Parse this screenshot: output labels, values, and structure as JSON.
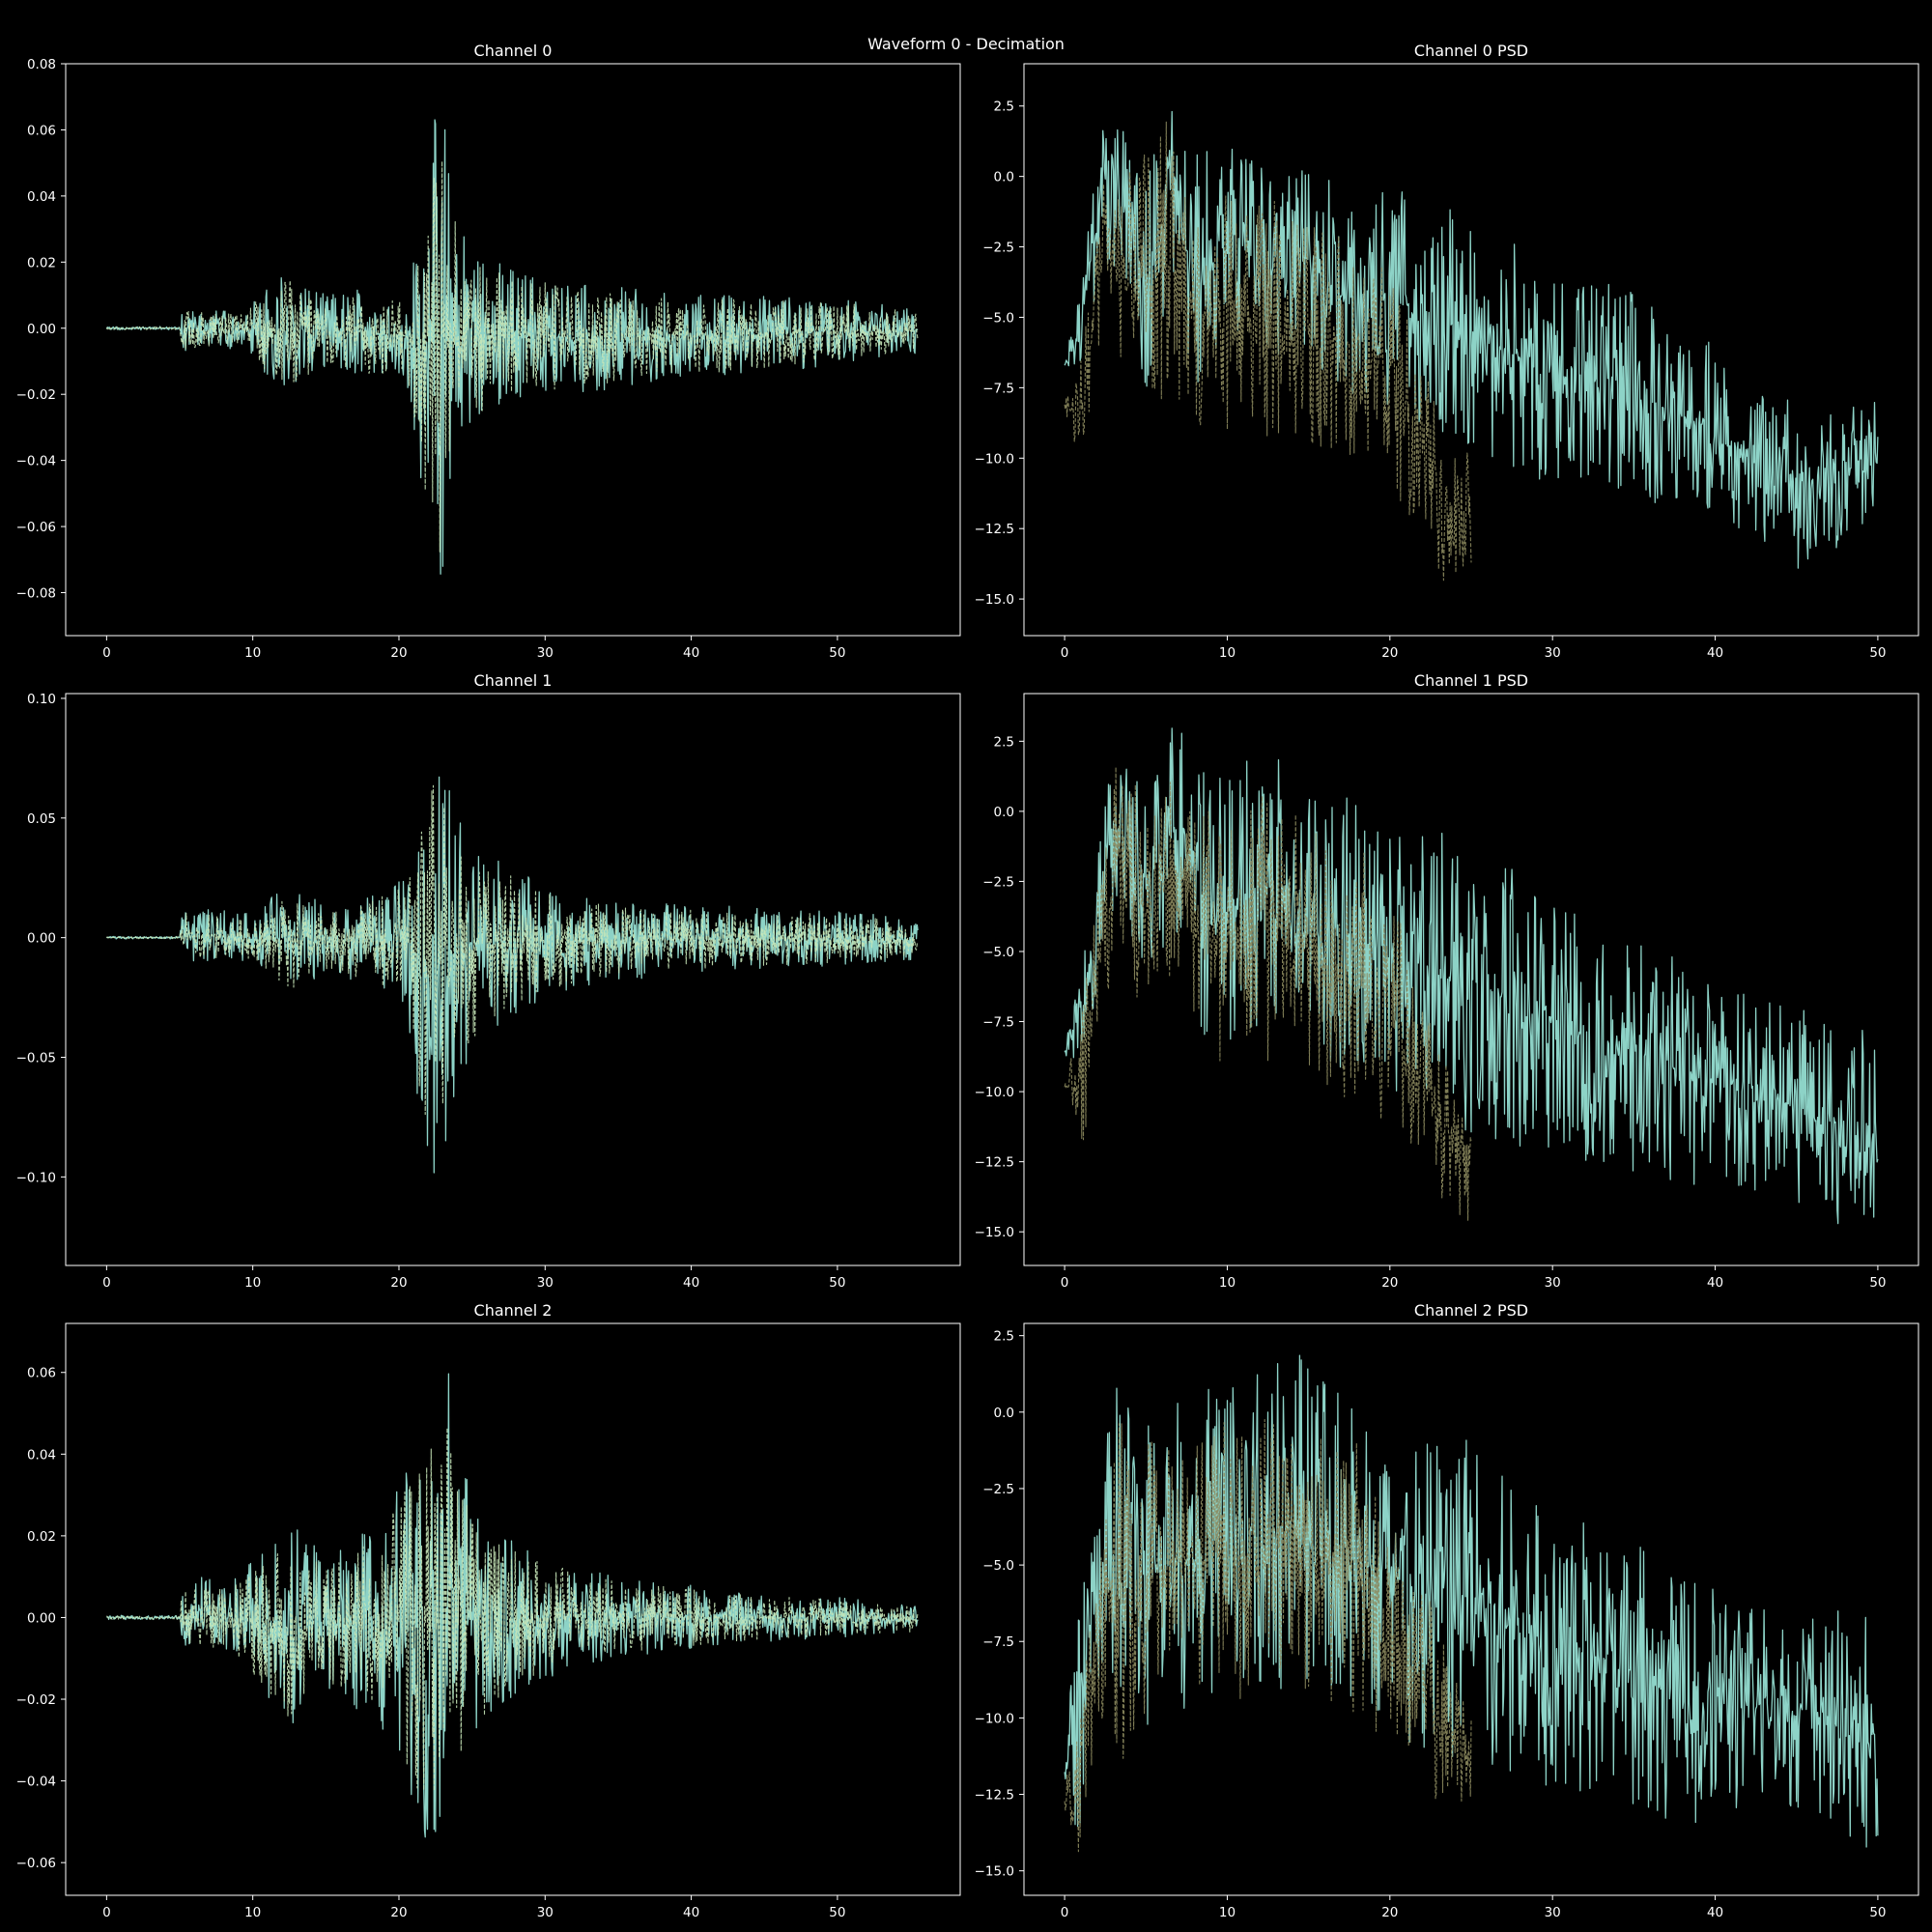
{
  "figure": {
    "title": "Waveform 0 - Decimation",
    "background": "#000000"
  },
  "colors": {
    "original": "#8dd3c7",
    "decimated": "#c7e6b8",
    "psd_decimated": "#8c8a5e",
    "axes": "#ffffff"
  },
  "chart_data": [
    {
      "type": "line",
      "title": "Channel 0",
      "xlabel": "",
      "ylabel": "",
      "xlim": [
        -2.8,
        58.4
      ],
      "ylim": [
        -0.093,
        0.08
      ],
      "xticks": [
        0,
        10,
        20,
        30,
        40,
        50
      ],
      "yticks": [
        -0.08,
        -0.06,
        -0.04,
        -0.02,
        0.0,
        0.02,
        0.04,
        0.06,
        0.08
      ],
      "ytick_labels": [
        "−0.08",
        "−0.06",
        "−0.04",
        "−0.02",
        "0.00",
        "0.02",
        "0.04",
        "0.06",
        "0.08"
      ],
      "series": [
        {
          "style": "solid",
          "color": "#8dd3c7",
          "envelope": {
            "x": [
              0,
              5.0,
              5.2,
              9.5,
              10.5,
              12.5,
              15,
              18,
              20.5,
              21.5,
              22.5,
              23.0,
              23.5,
              25,
              28,
              32,
              38,
              45,
              50,
              55.5
            ],
            "upper": [
              0.0005,
              0.0005,
              0.006,
              0.005,
              0.012,
              0.018,
              0.01,
              0.013,
              0.01,
              0.035,
              0.065,
              0.072,
              0.045,
              0.025,
              0.018,
              0.014,
              0.011,
              0.01,
              0.009,
              0.006
            ],
            "lower": [
              -0.0005,
              -0.0005,
              -0.007,
              -0.006,
              -0.013,
              -0.02,
              -0.012,
              -0.016,
              -0.015,
              -0.05,
              -0.072,
              -0.085,
              -0.05,
              -0.03,
              -0.022,
              -0.02,
              -0.016,
              -0.014,
              -0.011,
              -0.008
            ]
          }
        },
        {
          "style": "dashed",
          "color": "#c7e6b8",
          "scale": 0.88
        }
      ]
    },
    {
      "type": "line",
      "title": "Channel 0 PSD",
      "xlabel": "",
      "ylabel": "",
      "xlim": [
        -2.5,
        52.5
      ],
      "ylim": [
        -16.3,
        4.0
      ],
      "xticks": [
        0,
        10,
        20,
        30,
        40,
        50
      ],
      "yticks": [
        -15.0,
        -12.5,
        -10.0,
        -7.5,
        -5.0,
        -2.5,
        0.0,
        2.5
      ],
      "ytick_labels": [
        "−15.0",
        "−12.5",
        "−10.0",
        "−7.5",
        "−5.0",
        "−2.5",
        "0.0",
        "2.5"
      ],
      "series": [
        {
          "style": "solid",
          "color": "#8dd3c7",
          "envelope": {
            "x": [
              0,
              1,
              2.5,
              4,
              5,
              6.5,
              8,
              10,
              12,
              14,
              17,
              20,
              23,
              26,
              30,
              35,
              40,
              42,
              45,
              50
            ],
            "upper": [
              -6.5,
              -4.0,
              3.0,
              1.5,
              0.0,
              3.0,
              0.8,
              1.5,
              0.5,
              1.2,
              -0.5,
              -0.3,
              -0.8,
              -1.8,
              -3.0,
              -4.0,
              -6.0,
              -7.5,
              -7.5,
              -8.0
            ],
            "lower": [
              -7.0,
              -7.0,
              -3.0,
              -4.0,
              -8.5,
              -4.0,
              -8.5,
              -5.0,
              -7.0,
              -6.0,
              -8.0,
              -8.5,
              -9.0,
              -10.0,
              -11.0,
              -11.5,
              -12.0,
              -13.0,
              -14.0,
              -12.5
            ]
          }
        },
        {
          "style": "dashed",
          "color": "#8c8a5e",
          "xmax": 25,
          "envelope": {
            "x": [
              0,
              1,
              2.5,
              4,
              6.5,
              8,
              10,
              14,
              18,
              20,
              22,
              23,
              25
            ],
            "upper": [
              -8.0,
              -6.5,
              2.0,
              0.5,
              2.5,
              -0.5,
              0.5,
              -1.0,
              -2.0,
              -3.0,
              -6.0,
              -8.5,
              -10.0
            ],
            "lower": [
              -8.2,
              -10.5,
              -5.0,
              -8.0,
              -8.5,
              -9.0,
              -9.0,
              -9.5,
              -10.0,
              -11.0,
              -13.0,
              -14.5,
              -15.4
            ]
          }
        }
      ]
    },
    {
      "type": "line",
      "title": "Channel 1",
      "xlabel": "",
      "ylabel": "",
      "xlim": [
        -2.8,
        58.4
      ],
      "ylim": [
        -0.137,
        0.102
      ],
      "xticks": [
        0,
        10,
        20,
        30,
        40,
        50
      ],
      "yticks": [
        -0.1,
        -0.05,
        0.0,
        0.05,
        0.1
      ],
      "ytick_labels": [
        "−0.10",
        "−0.05",
        "0.00",
        "0.05",
        "0.10"
      ],
      "series": [
        {
          "style": "solid",
          "color": "#8dd3c7",
          "envelope": {
            "x": [
              0,
              5.0,
              5.2,
              10,
              12.8,
              15,
              18,
              20.5,
              21.5,
              22.0,
              23.0,
              24,
              26,
              30,
              35,
              40,
              50,
              55.5
            ],
            "upper": [
              0.0005,
              0.0005,
              0.013,
              0.01,
              0.025,
              0.012,
              0.017,
              0.025,
              0.06,
              0.093,
              0.073,
              0.055,
              0.035,
              0.022,
              0.015,
              0.014,
              0.011,
              0.008
            ],
            "lower": [
              -0.0005,
              -0.0005,
              -0.01,
              -0.01,
              -0.027,
              -0.015,
              -0.02,
              -0.028,
              -0.08,
              -0.127,
              -0.095,
              -0.06,
              -0.04,
              -0.025,
              -0.018,
              -0.015,
              -0.012,
              -0.01
            ]
          }
        },
        {
          "style": "dashed",
          "color": "#c7e6b8",
          "scale": 0.88
        }
      ]
    },
    {
      "type": "line",
      "title": "Channel 1 PSD",
      "xlabel": "",
      "ylabel": "",
      "xlim": [
        -2.5,
        52.5
      ],
      "ylim": [
        -16.2,
        4.2
      ],
      "xticks": [
        0,
        10,
        20,
        30,
        40,
        50
      ],
      "yticks": [
        -15.0,
        -12.5,
        -10.0,
        -7.5,
        -5.0,
        -2.5,
        0.0,
        2.5
      ],
      "ytick_labels": [
        "−15.0",
        "−12.5",
        "−10.0",
        "−7.5",
        "−5.0",
        "−2.5",
        "0.0",
        "2.5"
      ],
      "series": [
        {
          "style": "solid",
          "color": "#8dd3c7",
          "envelope": {
            "x": [
              0,
              1,
              3.3,
              5,
              6.8,
              9,
              12.5,
              15,
              18,
              20,
              22,
              25,
              28,
              32,
              36,
              40,
              45,
              50
            ],
            "upper": [
              -8.5,
              -5.0,
              3.3,
              1.0,
              3.3,
              1.0,
              2.4,
              0.5,
              0.5,
              -0.5,
              -0.8,
              -0.5,
              -2.0,
              -3.5,
              -4.5,
              -6.0,
              -7.0,
              -8.0
            ],
            "lower": [
              -8.7,
              -9.0,
              -3.0,
              -6.0,
              -4.5,
              -9.0,
              -7.5,
              -9.0,
              -9.5,
              -10.0,
              -11.0,
              -11.5,
              -12.0,
              -12.5,
              -13.0,
              -13.5,
              -14.0,
              -15.4
            ]
          }
        },
        {
          "style": "dashed",
          "color": "#8c8a5e",
          "xmax": 25,
          "envelope": {
            "x": [
              0,
              1,
              3.3,
              5,
              6.8,
              9,
              13,
              16,
              19,
              21,
              23,
              25
            ],
            "upper": [
              -9.8,
              -7.0,
              2.5,
              0.0,
              2.0,
              0.0,
              1.0,
              -1.0,
              -1.5,
              -4.5,
              -8.5,
              -9.5
            ],
            "lower": [
              -10.0,
              -12.2,
              -5.5,
              -7.5,
              -6.0,
              -9.0,
              -9.0,
              -10.0,
              -11.0,
              -12.0,
              -14.0,
              -14.7
            ]
          }
        }
      ]
    },
    {
      "type": "line",
      "title": "Channel 2",
      "xlabel": "",
      "ylabel": "",
      "xlim": [
        -2.8,
        58.4
      ],
      "ylim": [
        -0.068,
        0.072
      ],
      "xticks": [
        0,
        10,
        20,
        30,
        40,
        50
      ],
      "yticks": [
        -0.06,
        -0.04,
        -0.02,
        0.0,
        0.02,
        0.04,
        0.06
      ],
      "ytick_labels": [
        "−0.06",
        "−0.04",
        "−0.02",
        "0.00",
        "0.02",
        "0.04",
        "0.06"
      ],
      "series": [
        {
          "style": "solid",
          "color": "#8dd3c7",
          "envelope": {
            "x": [
              0,
              5.0,
              5.2,
              8,
              10.5,
              12.5,
              15,
              17,
              19,
              21,
              22.5,
              23.3,
              24.5,
              27,
              30,
              35,
              40,
              45,
              50,
              55.5
            ],
            "upper": [
              0.0005,
              0.0005,
              0.012,
              0.008,
              0.016,
              0.023,
              0.016,
              0.02,
              0.025,
              0.04,
              0.055,
              0.066,
              0.035,
              0.02,
              0.015,
              0.01,
              0.008,
              0.006,
              0.005,
              0.003
            ],
            "lower": [
              -0.0005,
              -0.0005,
              -0.01,
              -0.008,
              -0.018,
              -0.028,
              -0.018,
              -0.022,
              -0.028,
              -0.045,
              -0.062,
              -0.05,
              -0.035,
              -0.022,
              -0.015,
              -0.01,
              -0.008,
              -0.006,
              -0.005,
              -0.004
            ]
          }
        },
        {
          "style": "dashed",
          "color": "#c7e6b8",
          "scale": 0.88
        }
      ]
    },
    {
      "type": "line",
      "title": "Channel 2 PSD",
      "xlabel": "",
      "ylabel": "",
      "xlim": [
        -2.5,
        52.5
      ],
      "ylim": [
        -15.8,
        2.9
      ],
      "xticks": [
        0,
        10,
        20,
        30,
        40,
        50
      ],
      "yticks": [
        -15.0,
        -12.5,
        -10.0,
        -7.5,
        -5.0,
        -2.5,
        0.0,
        2.5
      ],
      "ytick_labels": [
        "−15.0",
        "−12.5",
        "−10.0",
        "−7.5",
        "−5.0",
        "−2.5",
        "0.0",
        "2.5"
      ],
      "series": [
        {
          "style": "solid",
          "color": "#8dd3c7",
          "envelope": {
            "x": [
              0,
              0.8,
              2,
              3.2,
              5,
              8,
              10,
              12,
              14.5,
              17,
              20,
              22,
              25,
              28,
              31,
              35,
              38,
              42,
              46,
              50
            ],
            "upper": [
              -11.5,
              -6.0,
              -2.5,
              1.0,
              0.0,
              0.5,
              1.5,
              1.5,
              2.0,
              0.5,
              -0.5,
              -1.0,
              -0.5,
              -2.0,
              -2.5,
              -4.0,
              -5.5,
              -6.0,
              -6.5,
              -6.5
            ],
            "lower": [
              -12.0,
              -14.0,
              -9.5,
              -12.3,
              -10.5,
              -10.0,
              -9.0,
              -9.5,
              -9.0,
              -9.5,
              -10.5,
              -11.0,
              -11.5,
              -12.0,
              -12.5,
              -13.0,
              -13.5,
              -13.2,
              -13.0,
              -14.8
            ]
          }
        },
        {
          "style": "dashed",
          "color": "#8c8a5e",
          "xmax": 25,
          "envelope": {
            "x": [
              0,
              0.8,
              2,
              3.2,
              6,
              10,
              14,
              18,
              20,
              22,
              24,
              25
            ],
            "upper": [
              -12.5,
              -9.0,
              -4.0,
              0.0,
              -1.0,
              0.0,
              0.5,
              -1.0,
              -3.0,
              -5.5,
              -8.0,
              -8.5
            ],
            "lower": [
              -13.0,
              -14.6,
              -10.5,
              -12.3,
              -9.0,
              -9.5,
              -9.0,
              -10.0,
              -11.0,
              -12.5,
              -13.0,
              -13.3
            ]
          }
        }
      ]
    }
  ]
}
